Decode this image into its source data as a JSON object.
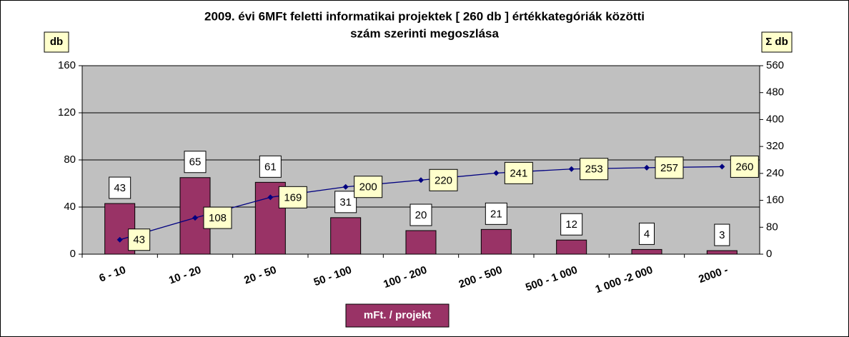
{
  "chart_data": {
    "type": "bar_line",
    "title": [
      "2009. évi 6MFt feletti informatikai projektek [ 260 db ] értékkategóriák közötti",
      "szám szerinti megoszlása"
    ],
    "y_label": "db",
    "y2_label": "Σ db",
    "x_label": "mFt. / projekt",
    "categories": [
      "6 - 10",
      "10 - 20",
      "20 - 50",
      "50 - 100",
      "100 - 200",
      "200 - 500",
      "500 - 1 000",
      "1 000 -2 000",
      "2000 -"
    ],
    "series": [
      {
        "type": "bar",
        "color": "#993366",
        "values": [
          43,
          65,
          61,
          31,
          20,
          21,
          12,
          4,
          3
        ]
      },
      {
        "type": "line",
        "axis": "y2",
        "color": "#000080",
        "values": [
          43,
          108,
          169,
          200,
          220,
          241,
          253,
          257,
          260
        ]
      }
    ],
    "ylim": [
      0,
      160
    ],
    "yticks": [
      0,
      40,
      80,
      120,
      160
    ],
    "y2lim": [
      0,
      560
    ],
    "y2ticks": [
      0,
      80,
      160,
      240,
      320,
      400,
      480,
      560
    ],
    "grid": true
  }
}
